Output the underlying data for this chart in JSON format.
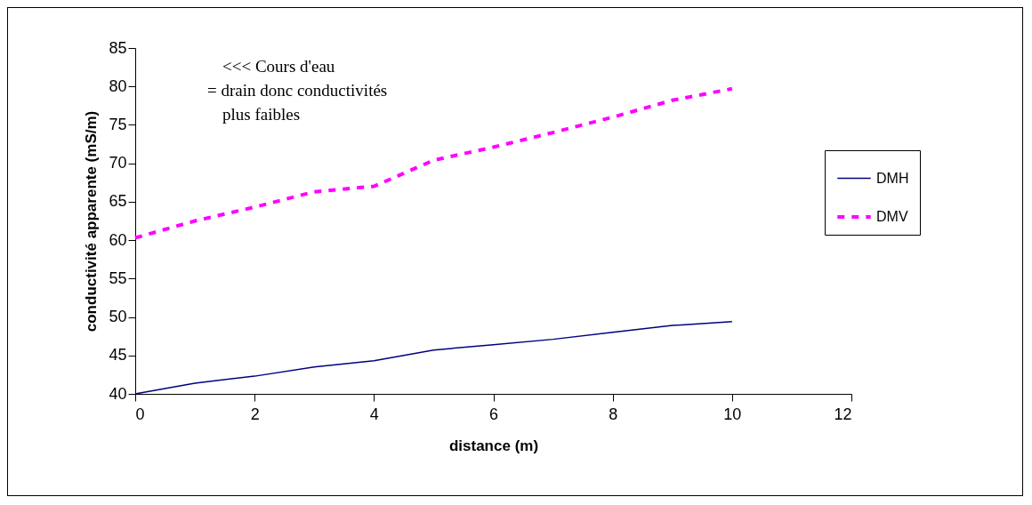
{
  "chart_data": {
    "type": "line",
    "xlabel": "distance (m)",
    "ylabel": "conductivité apparente (mS/m)",
    "x": [
      0,
      1,
      2,
      3,
      4,
      5,
      6,
      7,
      8,
      9,
      10
    ],
    "series": [
      {
        "name": "DMH",
        "color": "#000080",
        "line_style": "solid",
        "values": [
          40.0,
          41.4,
          42.3,
          43.5,
          44.3,
          45.7,
          46.4,
          47.1,
          48.0,
          48.9,
          49.4
        ]
      },
      {
        "name": "DMV",
        "color": "#ff00ff",
        "line_style": "dashed",
        "values": [
          60.3,
          62.5,
          64.3,
          66.3,
          67.0,
          70.4,
          72.1,
          74.0,
          76.0,
          78.2,
          79.7
        ]
      }
    ],
    "xlim": [
      0,
      12
    ],
    "xticks": [
      0,
      2,
      4,
      6,
      8,
      10,
      12
    ],
    "ylim": [
      40,
      85
    ],
    "yticks": [
      40,
      45,
      50,
      55,
      60,
      65,
      70,
      75,
      80,
      85
    ],
    "grid": false,
    "legend": "right",
    "annotations": [
      "<<< Cours d'eau\n= drain donc conductivités\nplus faibles"
    ]
  }
}
